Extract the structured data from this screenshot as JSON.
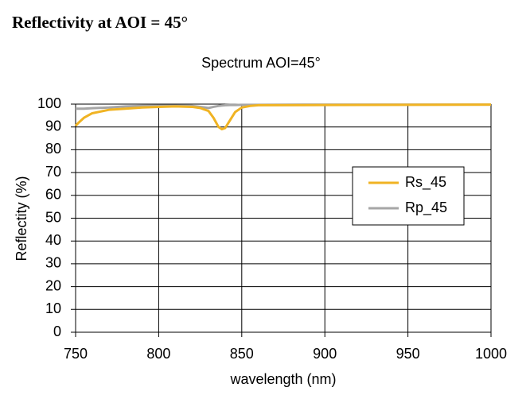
{
  "heading": "Reflectivity at AOI = 45°",
  "chart_data": {
    "type": "line",
    "title": "Spectrum AOI=45°",
    "x_label": "wavelength (nm)",
    "y_label": "Reflectity (%)",
    "x": [
      750,
      752,
      755,
      760,
      770,
      780,
      790,
      800,
      810,
      820,
      825,
      830,
      833,
      836,
      838,
      840,
      843,
      846,
      850,
      855,
      860,
      900,
      950,
      1000
    ],
    "series": [
      {
        "name": "Rs_45",
        "color": "#f0b323",
        "values": [
          90.5,
          92,
          94,
          96,
          97.5,
          98,
          98.5,
          98.8,
          99,
          98.8,
          98.3,
          97,
          94,
          90,
          89,
          89.5,
          93,
          96.5,
          98.5,
          99.2,
          99.5,
          99.6,
          99.7,
          99.8
        ]
      },
      {
        "name": "Rp_45",
        "color": "#a6a6a6",
        "values": [
          98,
          98,
          98,
          98.2,
          98.5,
          99,
          99.2,
          99.3,
          99.3,
          99.2,
          98.8,
          98.3,
          98.8,
          99.2,
          99.4,
          99.5,
          99.6,
          99.6,
          99.7,
          99.7,
          99.7,
          99.8,
          99.8,
          99.8
        ]
      }
    ],
    "xlim": [
      750,
      1000
    ],
    "xticks": [
      750,
      800,
      850,
      900,
      950,
      1000
    ],
    "ylim": [
      0,
      100
    ],
    "yticks": [
      0,
      10,
      20,
      30,
      40,
      50,
      60,
      70,
      80,
      90,
      100
    ],
    "grid": true,
    "legend": "right"
  }
}
